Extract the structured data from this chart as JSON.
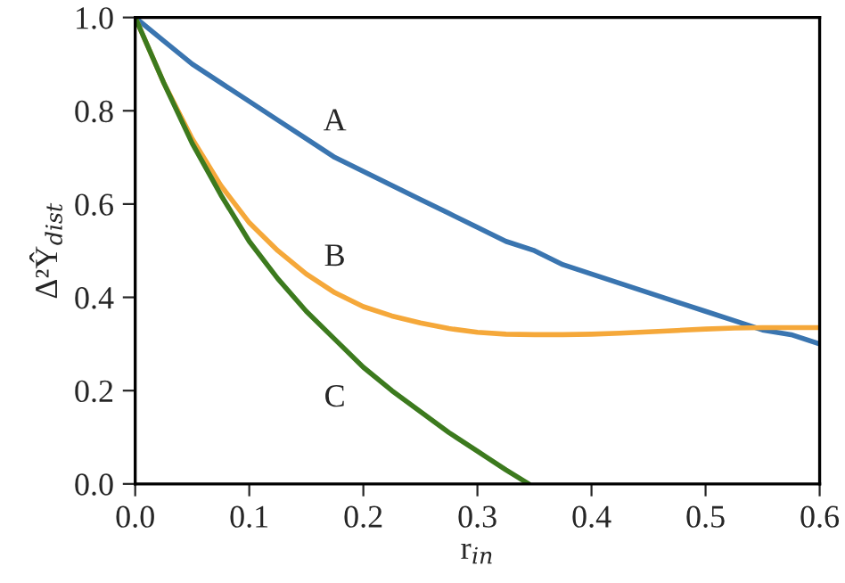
{
  "chart_data": {
    "type": "line",
    "xlabel": "r$_{in}$",
    "ylabel": "Δ²Ŷ$_{dist}$",
    "xlim": [
      0.0,
      0.6
    ],
    "xticks": [
      {
        "value": 0.0,
        "label": "0.0"
      },
      0.1,
      0.2,
      0.3,
      0.4,
      0.5,
      0.6
    ],
    "ylim": [
      0.0,
      1.0
    ],
    "yticks": [
      {
        "value": 0.0,
        "label": "0.0"
      },
      0.2,
      0.4,
      0.6,
      0.8,
      {
        "value": 1.0,
        "label": "1.0"
      }
    ],
    "grid": false,
    "legend": false,
    "series": [
      {
        "name": "A",
        "color": "#3a75b0",
        "x": [
          0,
          0.025,
          0.05,
          0.075,
          0.1,
          0.125,
          0.15,
          0.175,
          0.2,
          0.225,
          0.25,
          0.275,
          0.3,
          0.325,
          0.35,
          0.375,
          0.4,
          0.425,
          0.45,
          0.475,
          0.5,
          0.525,
          0.55,
          0.575,
          0.6
        ],
        "values": [
          1.0,
          0.95,
          0.9,
          0.86,
          0.82,
          0.78,
          0.74,
          0.7,
          0.67,
          0.64,
          0.61,
          0.58,
          0.55,
          0.52,
          0.5,
          0.47,
          0.45,
          0.43,
          0.41,
          0.39,
          0.37,
          0.35,
          0.33,
          0.32,
          0.3
        ]
      },
      {
        "name": "B",
        "color": "#f5a83a",
        "x": [
          0,
          0.025,
          0.05,
          0.075,
          0.1,
          0.125,
          0.15,
          0.175,
          0.2,
          0.225,
          0.25,
          0.275,
          0.3,
          0.325,
          0.35,
          0.375,
          0.4,
          0.425,
          0.45,
          0.475,
          0.5,
          0.525,
          0.55,
          0.575,
          0.6
        ],
        "values": [
          1.0,
          0.86,
          0.74,
          0.64,
          0.56,
          0.5,
          0.45,
          0.41,
          0.38,
          0.36,
          0.345,
          0.333,
          0.325,
          0.321,
          0.32,
          0.32,
          0.321,
          0.323,
          0.326,
          0.329,
          0.332,
          0.334,
          0.335,
          0.335,
          0.335
        ]
      },
      {
        "name": "C",
        "color": "#3c7a1e",
        "x": [
          0,
          0.025,
          0.05,
          0.075,
          0.1,
          0.125,
          0.15,
          0.175,
          0.2,
          0.225,
          0.25,
          0.275,
          0.3,
          0.325,
          0.345
        ],
        "values": [
          1.0,
          0.86,
          0.73,
          0.62,
          0.52,
          0.44,
          0.37,
          0.31,
          0.25,
          0.2,
          0.155,
          0.11,
          0.07,
          0.03,
          0.0
        ]
      }
    ]
  }
}
